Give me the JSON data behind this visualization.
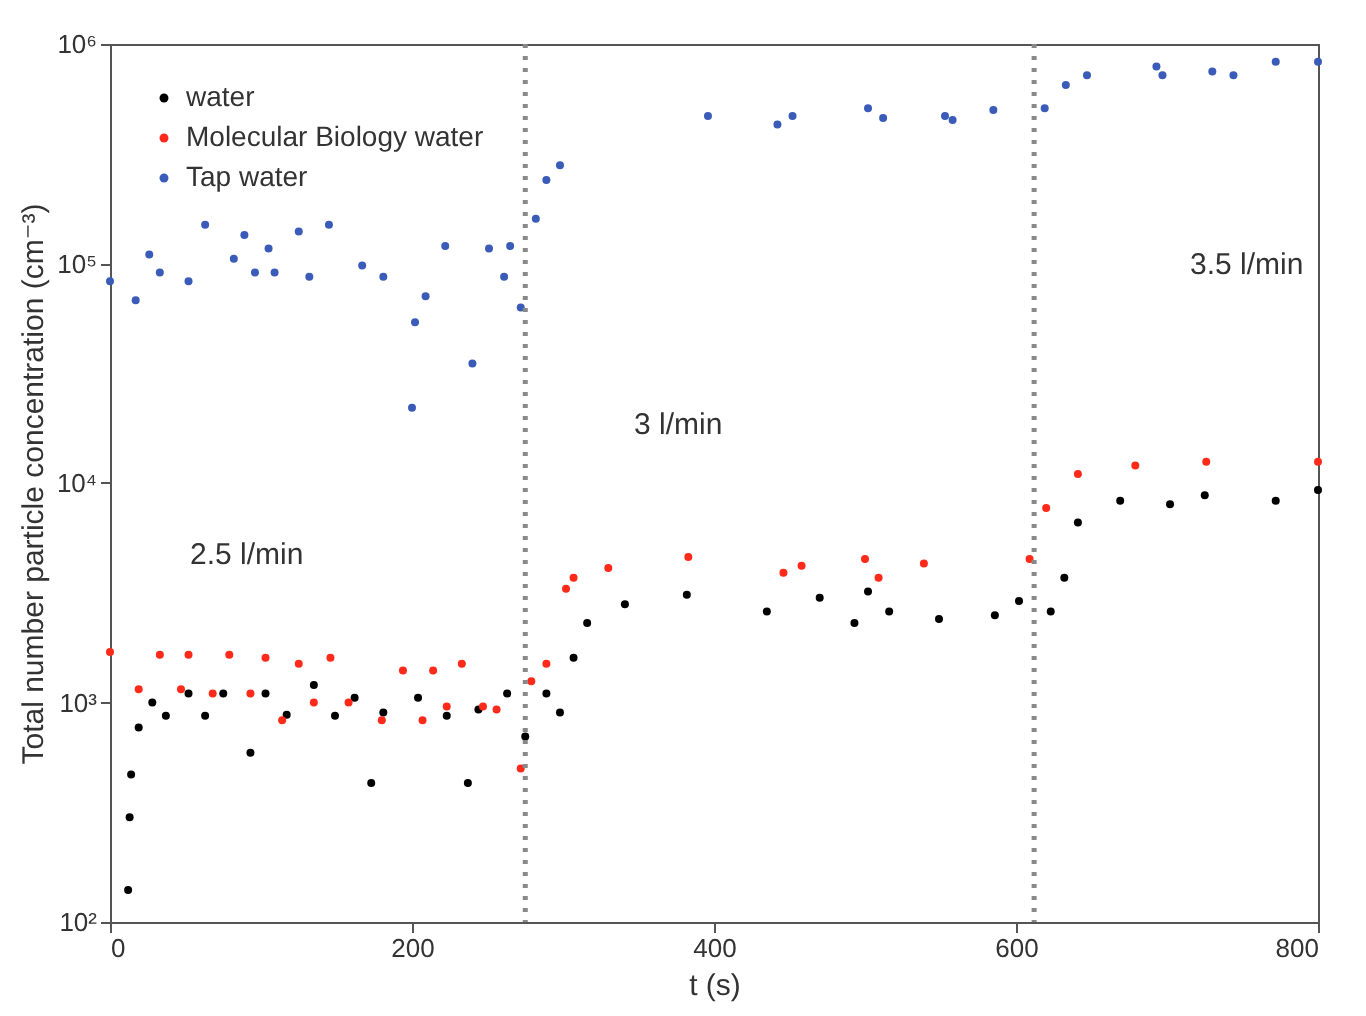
{
  "chart_data": {
    "type": "scatter",
    "xlabel": "t (s)",
    "ylabel": "Total number particle concentration (cm⁻³)",
    "log": "y",
    "marker": "circle",
    "legend": "top left",
    "grid": false,
    "xlim": [
      0,
      800
    ],
    "xticks": [
      0,
      200,
      400,
      600,
      800
    ],
    "ylim": [
      100,
      1000000
    ],
    "yticks": [
      {
        "value": 100,
        "label": "10²"
      },
      {
        "value": 1000,
        "label": "10³"
      },
      {
        "value": 10000,
        "label": "10⁴"
      },
      {
        "value": 100000,
        "label": "10⁵"
      },
      {
        "value": 1000000,
        "label": "10⁶"
      }
    ],
    "ref_lines": [
      {
        "axis": "x",
        "value": 275,
        "color": "#888888",
        "line_style": "dotted"
      },
      {
        "axis": "x",
        "value": 612,
        "color": "#888888",
        "line_style": "dotted"
      }
    ],
    "annotations": [
      "2.5 l/min",
      "3 l/min",
      "3.5 l/min"
    ],
    "series": [
      {
        "name": "water",
        "color": "#000000",
        "x": [
          12,
          13,
          14,
          19,
          28,
          37,
          52,
          63,
          75,
          93,
          103,
          117,
          135,
          149,
          162,
          173,
          181,
          204,
          223,
          237,
          244,
          263,
          275,
          289,
          298,
          307,
          316,
          341,
          382,
          435,
          470,
          493,
          502,
          516,
          549,
          586,
          602,
          623,
          632,
          641,
          669,
          702,
          725,
          772,
          800
        ],
        "values": [
          140,
          300,
          470,
          770,
          1000,
          870,
          1100,
          870,
          1100,
          590,
          1100,
          880,
          1200,
          870,
          1050,
          430,
          900,
          1050,
          870,
          430,
          930,
          1100,
          700,
          1100,
          900,
          1600,
          2300,
          2800,
          3100,
          2600,
          3000,
          2300,
          3200,
          2600,
          2400,
          2500,
          2900,
          2600,
          3700,
          6600,
          8300,
          8000,
          8800,
          8300,
          9300
        ]
      },
      {
        "name": "Molecular Biology water",
        "color": "#ff2a1a",
        "x": [
          0,
          19,
          33,
          47,
          52,
          68,
          79,
          93,
          103,
          114,
          125,
          135,
          146,
          158,
          180,
          194,
          207,
          214,
          223,
          233,
          247,
          256,
          272,
          279,
          289,
          302,
          307,
          330,
          383,
          446,
          458,
          500,
          509,
          539,
          609,
          620,
          641,
          679,
          726,
          800
        ],
        "values": [
          1700,
          1150,
          1650,
          1150,
          1650,
          1100,
          1650,
          1100,
          1600,
          830,
          1500,
          1000,
          1600,
          1000,
          830,
          1400,
          830,
          1400,
          960,
          1500,
          960,
          930,
          500,
          1250,
          1500,
          3300,
          3700,
          4100,
          4600,
          3900,
          4200,
          4500,
          3700,
          4300,
          4500,
          7700,
          11000,
          12000,
          12500,
          12500
        ]
      },
      {
        "name": "Tap water",
        "color": "#3a5bb8",
        "x": [
          0,
          17,
          26,
          33,
          52,
          63,
          82,
          89,
          96,
          105,
          109,
          125,
          132,
          145,
          167,
          181,
          200,
          202,
          209,
          222,
          240,
          251,
          261,
          265,
          272,
          282,
          289,
          298,
          396,
          442,
          452,
          502,
          512,
          553,
          558,
          585,
          619,
          633,
          647,
          693,
          697,
          730,
          744,
          772,
          800
        ],
        "values": [
          83000,
          68000,
          110000,
          91000,
          83000,
          150000,
          105000,
          135000,
          91000,
          117000,
          91000,
          140000,
          87000,
          150000,
          98000,
          87000,
          22000,
          54000,
          71000,
          120000,
          35000,
          117000,
          87000,
          120000,
          63000,
          160000,
          240000,
          280000,
          470000,
          430000,
          470000,
          510000,
          460000,
          470000,
          450000,
          500000,
          510000,
          650000,
          720000,
          790000,
          720000,
          750000,
          720000,
          830000,
          830000
        ]
      }
    ]
  }
}
